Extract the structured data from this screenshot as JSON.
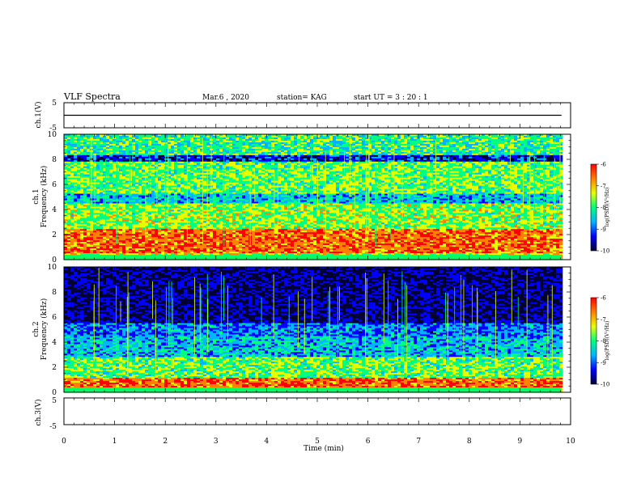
{
  "header": {
    "title": "VLF Spectra",
    "date": "Mar.6  , 2020",
    "station": "station= KAG",
    "start": "start  UT  =   3 : 20 : 1"
  },
  "colors": {
    "scale": [
      "#000033",
      "#0000ff",
      "#00b4ff",
      "#00ff80",
      "#e6ff00",
      "#ff8000",
      "#ff0000",
      "#ffffff"
    ],
    "background": "#ffffff",
    "axis": "#000000"
  },
  "chart_data": [
    {
      "type": "line",
      "name": "ch1-voltage",
      "ylabel": "ch.1(V)",
      "ylim": [
        -5,
        5
      ],
      "yticks": [
        "5",
        "-5"
      ],
      "x": [
        0,
        9.82
      ],
      "values": [
        0,
        0
      ]
    },
    {
      "type": "heatmap",
      "name": "ch1-spectrogram",
      "ylabel": "ch.1\nFrequency (kHz)",
      "ylim": [
        0,
        10
      ],
      "yticks": [
        "0",
        "2",
        "4",
        "6",
        "8",
        "10"
      ],
      "xlim": [
        0,
        10
      ],
      "data_end_min": 9.82,
      "colorbar": {
        "label": "log(PSD)(V²/Hz)",
        "range": [
          -10,
          -6
        ],
        "ticks": [
          "-6",
          "-7",
          "-8",
          "-9",
          "-10"
        ]
      }
    },
    {
      "type": "heatmap",
      "name": "ch2-spectrogram",
      "ylabel": "ch.2\nFrequency (kHz)",
      "ylim": [
        0,
        10
      ],
      "yticks": [
        "0",
        "2",
        "4",
        "6",
        "8",
        "10"
      ],
      "xlim": [
        0,
        10
      ],
      "data_end_min": 9.82,
      "colorbar": {
        "label": "log(PSD)(V²/Hz)",
        "range": [
          -10,
          -6
        ],
        "ticks": [
          "-6",
          "-7",
          "-8",
          "-9",
          "-10"
        ]
      }
    },
    {
      "type": "line",
      "name": "ch3-voltage",
      "ylabel": "ch.3(V)",
      "ylim": [
        -5,
        5
      ],
      "yticks": [
        "5",
        "-5"
      ],
      "x": [],
      "values": []
    }
  ],
  "x_axis": {
    "label": "Time (min)",
    "ticks": [
      "0",
      "1",
      "2",
      "3",
      "4",
      "5",
      "6",
      "7",
      "8",
      "9",
      "10"
    ],
    "xlim": [
      0,
      10
    ]
  }
}
